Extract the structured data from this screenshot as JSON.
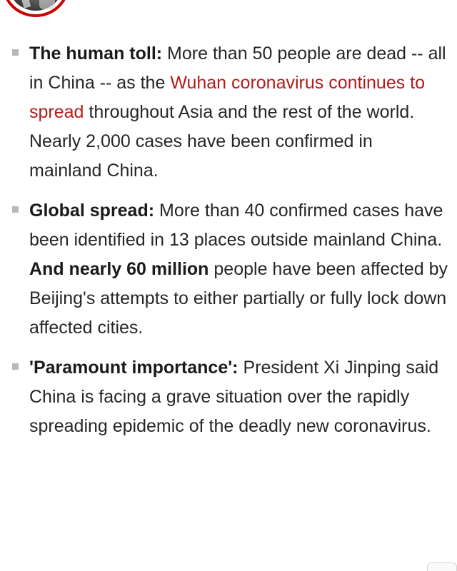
{
  "bullets": [
    {
      "lead": "The human toll:",
      "before": " More than 50 people are dead -- all in China -- as the ",
      "link": "Wuhan coronavirus continues to spread",
      "after": " throughout Asia and the rest of the world. Nearly 2,000 cases have been confirmed in mainland China."
    },
    {
      "lead": "Global spread:",
      "before": " More than 40 confirmed cases have been identified in 13 places outside mainland China. ",
      "emphasis": "And nearly 60 million",
      "after": " people have been affected by Beijing's attempts to either partially or fully lock down affected cities."
    },
    {
      "lead": "'Paramount importance':",
      "text": " President Xi Jinping said China is facing a grave situation over the rapidly spreading epidemic of the deadly new coronavirus."
    }
  ],
  "colors": {
    "accent": "#cc0000",
    "link": "#b31b1b",
    "text": "#262626",
    "bullet_marker": "#b8b8b8"
  }
}
